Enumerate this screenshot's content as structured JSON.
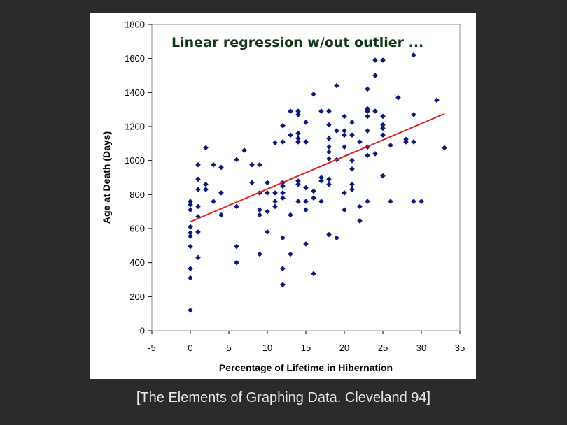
{
  "caption": "[The Elements of Graphing Data. Cleveland 94]",
  "colors": {
    "background": "#2b2b2b",
    "point": "#0a1a7a",
    "regression": "#e02020",
    "title": "#123a12"
  },
  "chart_data": {
    "type": "scatter",
    "title": "Linear regression w/out outlier ...",
    "xlabel": "Percentage of Lifetime in Hibernation",
    "ylabel": "Age at Death (Days)",
    "xlim": [
      -5,
      35
    ],
    "ylim": [
      0,
      1800
    ],
    "xticks": [
      -5,
      0,
      5,
      10,
      15,
      20,
      25,
      30,
      35
    ],
    "yticks": [
      0,
      200,
      400,
      600,
      800,
      1000,
      1200,
      1400,
      1600,
      1800
    ],
    "grid": false,
    "regression_line": {
      "x": [
        0,
        33
      ],
      "y": [
        640,
        1275
      ]
    },
    "points": [
      [
        0,
        120
      ],
      [
        0,
        310
      ],
      [
        0,
        365
      ],
      [
        0,
        495
      ],
      [
        0,
        555
      ],
      [
        0,
        575
      ],
      [
        0,
        610
      ],
      [
        0,
        710
      ],
      [
        0,
        740
      ],
      [
        0,
        760
      ],
      [
        1,
        430
      ],
      [
        1,
        580
      ],
      [
        1,
        670
      ],
      [
        1,
        730
      ],
      [
        1,
        830
      ],
      [
        1,
        890
      ],
      [
        1,
        975
      ],
      [
        2,
        830
      ],
      [
        2,
        860
      ],
      [
        2,
        1075
      ],
      [
        3,
        760
      ],
      [
        3,
        975
      ],
      [
        4,
        680
      ],
      [
        4,
        810
      ],
      [
        4,
        960
      ],
      [
        6,
        400
      ],
      [
        6,
        495
      ],
      [
        6,
        730
      ],
      [
        6,
        1005
      ],
      [
        7,
        1060
      ],
      [
        8,
        870
      ],
      [
        8,
        975
      ],
      [
        9,
        450
      ],
      [
        9,
        680
      ],
      [
        9,
        710
      ],
      [
        9,
        810
      ],
      [
        9,
        975
      ],
      [
        10,
        580
      ],
      [
        10,
        700
      ],
      [
        10,
        810
      ],
      [
        10,
        870
      ],
      [
        11,
        730
      ],
      [
        11,
        760
      ],
      [
        11,
        810
      ],
      [
        11,
        1105
      ],
      [
        12,
        270
      ],
      [
        12,
        365
      ],
      [
        12,
        545
      ],
      [
        12,
        780
      ],
      [
        12,
        810
      ],
      [
        12,
        850
      ],
      [
        12,
        870
      ],
      [
        12,
        1110
      ],
      [
        12,
        1205
      ],
      [
        13,
        450
      ],
      [
        13,
        680
      ],
      [
        13,
        1150
      ],
      [
        13,
        1290
      ],
      [
        14,
        760
      ],
      [
        14,
        860
      ],
      [
        14,
        880
      ],
      [
        14,
        1110
      ],
      [
        14,
        1130
      ],
      [
        14,
        1160
      ],
      [
        14,
        1270
      ],
      [
        14,
        1290
      ],
      [
        15,
        510
      ],
      [
        15,
        710
      ],
      [
        15,
        760
      ],
      [
        15,
        840
      ],
      [
        15,
        1110
      ],
      [
        15,
        1225
      ],
      [
        16,
        335
      ],
      [
        16,
        780
      ],
      [
        16,
        820
      ],
      [
        16,
        1390
      ],
      [
        17,
        760
      ],
      [
        17,
        880
      ],
      [
        17,
        900
      ],
      [
        17,
        1290
      ],
      [
        18,
        565
      ],
      [
        18,
        860
      ],
      [
        18,
        890
      ],
      [
        18,
        1010
      ],
      [
        18,
        1050
      ],
      [
        18,
        1080
      ],
      [
        18,
        1130
      ],
      [
        18,
        1210
      ],
      [
        18,
        1290
      ],
      [
        19,
        545
      ],
      [
        19,
        1005
      ],
      [
        19,
        1175
      ],
      [
        19,
        1440
      ],
      [
        20,
        710
      ],
      [
        20,
        810
      ],
      [
        20,
        1080
      ],
      [
        20,
        1150
      ],
      [
        20,
        1175
      ],
      [
        20,
        1260
      ],
      [
        21,
        830
      ],
      [
        21,
        860
      ],
      [
        21,
        950
      ],
      [
        21,
        1000
      ],
      [
        21,
        1150
      ],
      [
        21,
        1225
      ],
      [
        22,
        645
      ],
      [
        22,
        730
      ],
      [
        22,
        1110
      ],
      [
        23,
        760
      ],
      [
        23,
        1030
      ],
      [
        23,
        1080
      ],
      [
        23,
        1175
      ],
      [
        23,
        1260
      ],
      [
        23,
        1290
      ],
      [
        23,
        1305
      ],
      [
        23,
        1420
      ],
      [
        24,
        1040
      ],
      [
        24,
        1290
      ],
      [
        24,
        1500
      ],
      [
        24,
        1590
      ],
      [
        25,
        910
      ],
      [
        25,
        1150
      ],
      [
        25,
        1190
      ],
      [
        25,
        1210
      ],
      [
        25,
        1260
      ],
      [
        25,
        1590
      ],
      [
        26,
        760
      ],
      [
        26,
        1090
      ],
      [
        27,
        1370
      ],
      [
        28,
        1110
      ],
      [
        28,
        1125
      ],
      [
        29,
        760
      ],
      [
        29,
        1110
      ],
      [
        29,
        1270
      ],
      [
        29,
        1620
      ],
      [
        30,
        760
      ],
      [
        32,
        1355
      ],
      [
        33,
        1075
      ]
    ]
  }
}
